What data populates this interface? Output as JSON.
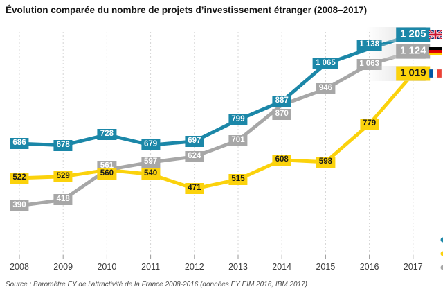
{
  "title": "Évolution comparée du nombre de projets d’investissement étranger (2008–2017)",
  "source": "Source : Baromètre EY de l’attractivité de la France 2008-2016 (données EY EIM 2016, IBM 2017)",
  "chart_data": {
    "type": "line",
    "title": "Évolution comparée du nombre de projets d’investissement étranger (2008–2017)",
    "categories": [
      "2008",
      "2009",
      "2010",
      "2011",
      "2012",
      "2013",
      "2014",
      "2015",
      "2016",
      "2017"
    ],
    "series": [
      {
        "name": "uk",
        "flag": "uk",
        "color": "#1b87a8",
        "label_text_color": "#ffffff",
        "values": [
          686,
          678,
          728,
          679,
          697,
          799,
          887,
          1065,
          1138,
          1205
        ],
        "final_value_label": "1 205"
      },
      {
        "name": "germany",
        "flag": "germany",
        "color": "#a7a7a7",
        "label_text_color": "#ffffff",
        "values": [
          390,
          418,
          561,
          597,
          624,
          701,
          870,
          946,
          1063,
          1124
        ],
        "final_value_label": "1 124"
      },
      {
        "name": "france",
        "flag": "france",
        "color": "#fbd20c",
        "label_text_color": "#1a1a1a",
        "values": [
          522,
          529,
          560,
          540,
          471,
          515,
          608,
          598,
          779,
          1019
        ],
        "final_value_label": "1 019"
      }
    ],
    "ylim": [
      300,
      1300
    ],
    "xlabel": "",
    "ylabel": "",
    "grid": "vertical-dashed",
    "legend_position": "end-of-line-flags",
    "number_format": "fr-space-thousands"
  },
  "colors": {
    "uk_blue": "#1b87a8",
    "germany_gray": "#a7a7a7",
    "france_yellow": "#fbd20c",
    "gridline": "#d4d4d4",
    "tick": "#999999",
    "axis_text": "#3d3d3d",
    "title_text": "#161616",
    "source_text": "#4a4a4a"
  }
}
